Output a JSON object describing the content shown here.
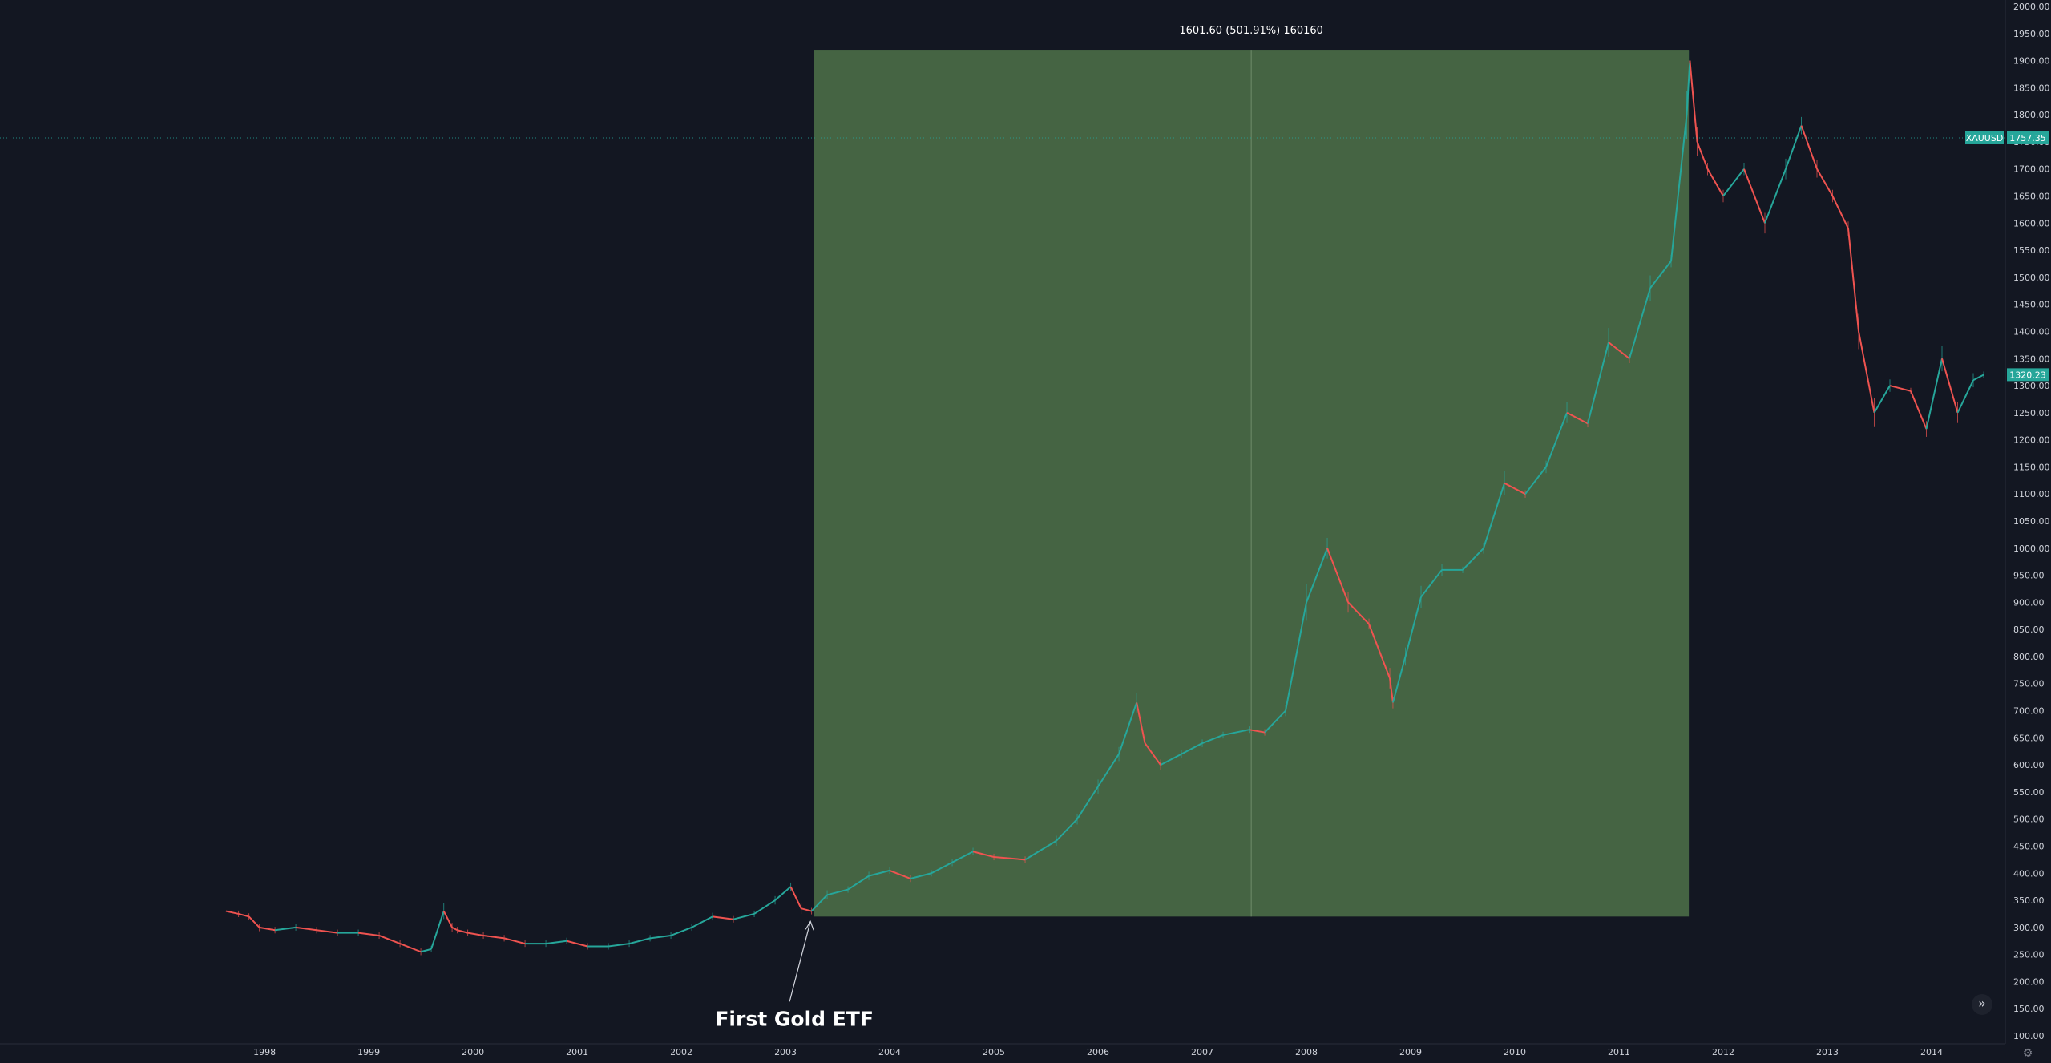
{
  "chart_data": {
    "type": "line",
    "symbol": "XAUUSD",
    "last_price_label": "1757.35",
    "current_price_label": "1320.23",
    "y_ticks": [
      "2000.00",
      "1950.00",
      "1900.00",
      "1850.00",
      "1800.00",
      "1750.00",
      "1700.00",
      "1650.00",
      "1600.00",
      "1550.00",
      "1500.00",
      "1450.00",
      "1400.00",
      "1350.00",
      "1300.00",
      "1250.00",
      "1200.00",
      "1150.00",
      "1100.00",
      "1050.00",
      "1000.00",
      "950.00",
      "900.00",
      "850.00",
      "800.00",
      "750.00",
      "700.00",
      "650.00",
      "600.00",
      "550.00",
      "500.00",
      "450.00",
      "400.00",
      "350.00",
      "300.00",
      "250.00",
      "200.00",
      "150.00",
      "100.00"
    ],
    "x_ticks": [
      "1998",
      "1999",
      "2000",
      "2001",
      "2002",
      "2003",
      "2004",
      "2005",
      "2006",
      "2007",
      "2008",
      "2009",
      "2010",
      "2011",
      "2012",
      "2013",
      "2014"
    ],
    "ylim": [
      100,
      2000
    ],
    "xlim": [
      1997.45,
      2014.5
    ],
    "series": [
      {
        "x": [
          1997.63,
          1997.75,
          1997.85,
          1997.95,
          1998.1,
          1998.3,
          1998.5,
          1998.7,
          1998.9,
          1999.1,
          1999.3,
          1999.5,
          1999.6,
          1999.72,
          1999.8,
          1999.85,
          1999.95,
          2000.1,
          2000.3,
          2000.5,
          2000.7,
          2000.9,
          2001.1,
          2001.3,
          2001.5,
          2001.7,
          2001.9,
          2002.1,
          2002.3,
          2002.5,
          2002.7,
          2002.9,
          2003.05,
          2003.15,
          2003.25,
          2003.4,
          2003.6,
          2003.8,
          2004.0,
          2004.2,
          2004.4,
          2004.6,
          2004.8,
          2005.0,
          2005.3,
          2005.6,
          2005.8,
          2006.0,
          2006.2,
          2006.37,
          2006.45,
          2006.6,
          2006.8,
          2007.0,
          2007.2,
          2007.45,
          2007.6,
          2007.8,
          2008.0,
          2008.2,
          2008.4,
          2008.6,
          2008.8,
          2008.83,
          2008.95,
          2009.1,
          2009.3,
          2009.5,
          2009.7,
          2009.9,
          2010.1,
          2010.3,
          2010.5,
          2010.7,
          2010.9,
          2011.1,
          2011.3,
          2011.5,
          2011.65,
          2011.68,
          2011.75,
          2011.85,
          2012.0,
          2012.2,
          2012.4,
          2012.6,
          2012.75,
          2012.9,
          2013.05,
          2013.2,
          2013.3,
          2013.45,
          2013.6,
          2013.8,
          2013.95,
          2014.1,
          2014.25,
          2014.4,
          2014.5
        ],
        "y": [
          330,
          325,
          320,
          300,
          295,
          300,
          295,
          290,
          290,
          285,
          270,
          255,
          260,
          330,
          300,
          295,
          290,
          285,
          280,
          270,
          270,
          275,
          265,
          265,
          270,
          280,
          285,
          300,
          320,
          315,
          325,
          350,
          375,
          335,
          330,
          360,
          370,
          395,
          405,
          390,
          400,
          420,
          440,
          430,
          425,
          460,
          500,
          560,
          620,
          715,
          640,
          600,
          620,
          640,
          655,
          665,
          660,
          700,
          900,
          1000,
          900,
          860,
          760,
          715,
          800,
          910,
          960,
          960,
          1000,
          1120,
          1100,
          1150,
          1250,
          1230,
          1380,
          1350,
          1480,
          1530,
          1800,
          1900,
          1750,
          1700,
          1650,
          1700,
          1600,
          1700,
          1780,
          1700,
          1650,
          1590,
          1400,
          1250,
          1300,
          1290,
          1220,
          1350,
          1250,
          1310,
          1320
        ],
        "color": "#26a69a",
        "down_color": "#ef5350"
      }
    ],
    "measure": {
      "x_start": 2003.27,
      "x_end": 2011.67,
      "y_low": 320,
      "y_high": 1920,
      "label": "1601.60 (501.91%) 160160",
      "fill": "#4a6b47"
    },
    "annotation": {
      "text": "First Gold ETF",
      "x": 2003.27,
      "y": 320
    },
    "last_price_line_value": 1757.35,
    "current_price_value": 1320.23,
    "grid": false
  },
  "colors": {
    "background": "#131722",
    "axis_text": "#d1d4dc",
    "tag": "#26a69a"
  },
  "ui": {
    "scroll_button_icon": "double-chevron-right-icon",
    "scroll_button_glyph": "»",
    "settings_icon": "gear-icon",
    "settings_glyph": "⚙"
  }
}
